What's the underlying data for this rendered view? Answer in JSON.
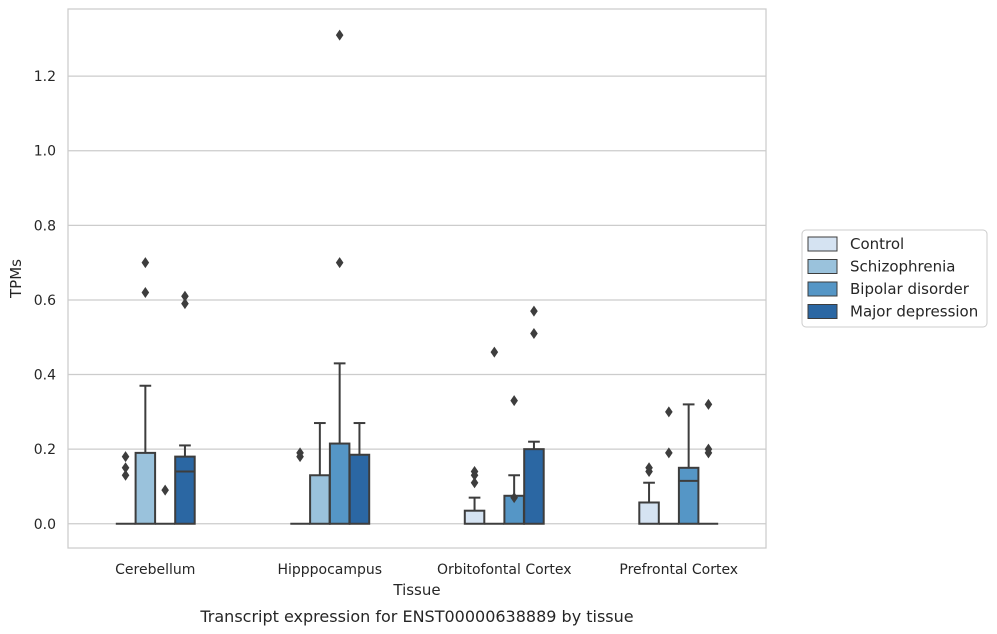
{
  "chart_data": {
    "type": "box",
    "caption": "Transcript expression for ENST00000638889 by tissue",
    "xlabel": "Tissue",
    "ylabel": "TPMs",
    "ylim": [
      -0.065,
      1.38
    ],
    "yticks": [
      0.0,
      0.2,
      0.4,
      0.6,
      0.8,
      1.0,
      1.2
    ],
    "ytick_labels": [
      "0.0",
      "0.2",
      "0.4",
      "0.6",
      "0.8",
      "1.0",
      "1.2"
    ],
    "grid": "horizontal",
    "legend_position": "right",
    "categories": [
      "Cerebellum",
      "Hipppocampus",
      "Orbitofontal Cortex",
      "Prefrontal Cortex"
    ],
    "series": [
      {
        "name": "Control",
        "color": "#d5e3f2",
        "boxes": [
          {
            "q1": 0,
            "median": 0,
            "q3": 0,
            "whisker_low": 0,
            "whisker_high": 0,
            "outliers": [
              0.13,
              0.15,
              0.18
            ]
          },
          {
            "q1": 0,
            "median": 0,
            "q3": 0,
            "whisker_low": 0,
            "whisker_high": 0,
            "outliers": [
              0.18,
              0.19
            ]
          },
          {
            "q1": 0,
            "median": 0,
            "q3": 0.035,
            "whisker_low": 0,
            "whisker_high": 0.07,
            "outliers": [
              0.11,
              0.13,
              0.14
            ]
          },
          {
            "q1": 0,
            "median": 0,
            "q3": 0.057,
            "whisker_low": 0,
            "whisker_high": 0.11,
            "outliers": [
              0.14,
              0.15
            ]
          }
        ]
      },
      {
        "name": "Schizophrenia",
        "color": "#9ac2dc",
        "boxes": [
          {
            "q1": 0,
            "median": 0,
            "q3": 0.19,
            "whisker_low": 0,
            "whisker_high": 0.37,
            "outliers": [
              0.62,
              0.7
            ]
          },
          {
            "q1": 0,
            "median": 0,
            "q3": 0.13,
            "whisker_low": 0,
            "whisker_high": 0.27,
            "outliers": []
          },
          {
            "q1": 0,
            "median": 0,
            "q3": 0,
            "whisker_low": 0,
            "whisker_high": 0,
            "outliers": [
              0.46
            ]
          },
          {
            "q1": 0,
            "median": 0,
            "q3": 0,
            "whisker_low": 0,
            "whisker_high": 0,
            "outliers": [
              0.19,
              0.3
            ]
          }
        ]
      },
      {
        "name": "Bipolar disorder",
        "color": "#5596c6",
        "boxes": [
          {
            "q1": 0,
            "median": 0,
            "q3": 0,
            "whisker_low": 0,
            "whisker_high": 0,
            "outliers": [
              0.09
            ]
          },
          {
            "q1": 0,
            "median": 0,
            "q3": 0.215,
            "whisker_low": 0,
            "whisker_high": 0.43,
            "outliers": [
              0.7,
              1.31
            ]
          },
          {
            "q1": 0,
            "median": 0,
            "q3": 0.075,
            "whisker_low": 0,
            "whisker_high": 0.13,
            "outliers": [
              0.07,
              0.33
            ]
          },
          {
            "q1": 0,
            "median": 0.115,
            "q3": 0.15,
            "whisker_low": 0,
            "whisker_high": 0.32,
            "outliers": []
          }
        ]
      },
      {
        "name": "Major depression",
        "color": "#2b67a3",
        "boxes": [
          {
            "q1": 0,
            "median": 0.14,
            "q3": 0.18,
            "whisker_low": 0,
            "whisker_high": 0.21,
            "outliers": [
              0.59,
              0.61
            ]
          },
          {
            "q1": 0,
            "median": 0,
            "q3": 0.185,
            "whisker_low": 0,
            "whisker_high": 0.27,
            "outliers": []
          },
          {
            "q1": 0,
            "median": 0,
            "q3": 0.2,
            "whisker_low": 0,
            "whisker_high": 0.22,
            "outliers": [
              0.51,
              0.57
            ]
          },
          {
            "q1": 0,
            "median": 0,
            "q3": 0,
            "whisker_low": 0,
            "whisker_high": 0,
            "outliers": [
              0.19,
              0.2,
              0.32
            ]
          }
        ]
      }
    ]
  }
}
